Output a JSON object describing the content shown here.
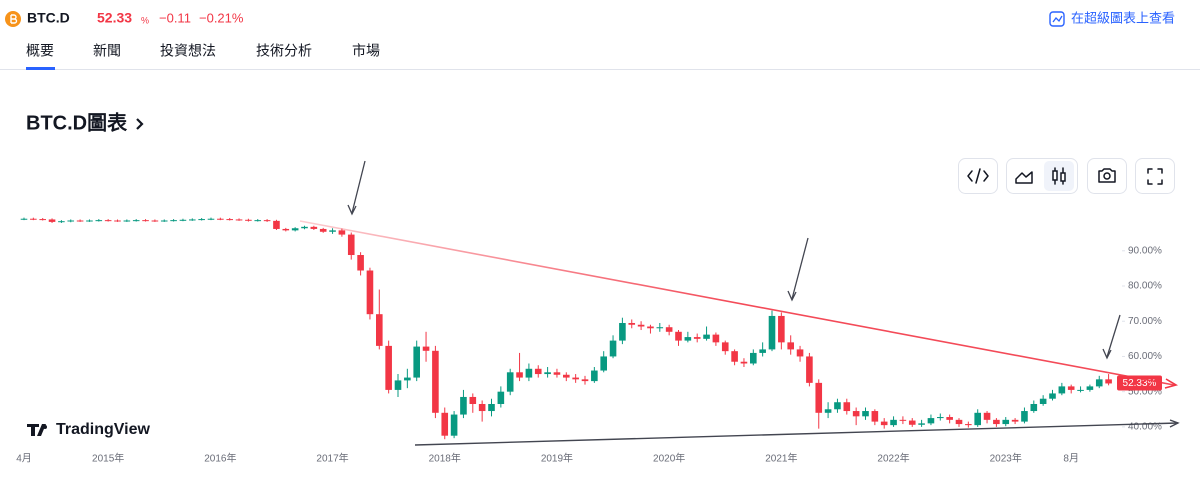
{
  "header": {
    "symbol": "BTC.D",
    "price": "52.33",
    "price_unit": "%",
    "change": "−0.11",
    "change_percent": "−0.21%",
    "link": "在超級圖表上查看"
  },
  "tabs": [
    "概要",
    "新聞",
    "投資想法",
    "技術分析",
    "市場"
  ],
  "section_title": "BTC.D圖表",
  "watermark": "TradingView",
  "chart_data": {
    "type": "candlestick",
    "categories": [
      "4月",
      null,
      null,
      null,
      null,
      null,
      null,
      null,
      null,
      "2015年",
      null,
      null,
      null,
      null,
      null,
      null,
      null,
      null,
      null,
      null,
      null,
      "2016年",
      null,
      null,
      null,
      null,
      null,
      null,
      null,
      null,
      null,
      null,
      null,
      "2017年",
      null,
      null,
      null,
      null,
      null,
      null,
      null,
      null,
      null,
      null,
      null,
      "2018年",
      null,
      null,
      null,
      null,
      null,
      null,
      null,
      null,
      null,
      null,
      null,
      "2019年",
      null,
      null,
      null,
      null,
      null,
      null,
      null,
      null,
      null,
      null,
      null,
      "2020年",
      null,
      null,
      null,
      null,
      null,
      null,
      null,
      null,
      null,
      null,
      null,
      "2021年",
      null,
      null,
      null,
      null,
      null,
      null,
      null,
      null,
      null,
      null,
      null,
      "2022年",
      null,
      null,
      null,
      null,
      null,
      null,
      null,
      null,
      null,
      null,
      null,
      "2023年",
      null,
      null,
      null,
      null,
      null,
      null,
      "8月",
      null,
      null,
      null,
      null
    ],
    "open": [
      99.0,
      99.1,
      99.0,
      98.9,
      98.2,
      98.4,
      98.6,
      98.5,
      98.6,
      98.7,
      98.6,
      98.5,
      98.6,
      98.7,
      98.6,
      98.5,
      98.6,
      98.7,
      98.8,
      98.9,
      99.0,
      99.1,
      99.0,
      98.9,
      98.8,
      98.6,
      98.7,
      98.5,
      96.2,
      95.8,
      96.4,
      96.8,
      96.2,
      95.4,
      95.8,
      94.6,
      88.8,
      84.4,
      72.0,
      63.0,
      50.5,
      53.2,
      54.0,
      62.8,
      61.6,
      44.0,
      37.5,
      43.5,
      48.5,
      46.5,
      44.5,
      46.5,
      50.0,
      55.5,
      54.0,
      56.5,
      55.0,
      55.5,
      54.8,
      54.0,
      53.5,
      53.0,
      56.0,
      60.0,
      64.5,
      69.5,
      69.0,
      68.5,
      68.0,
      68.3,
      67.0,
      64.5,
      65.5,
      65.0,
      66.2,
      64.0,
      61.5,
      58.5,
      58.0,
      61.0,
      62.0,
      71.5,
      64.0,
      62.0,
      60.0,
      52.5,
      44.0,
      45.0,
      47.0,
      44.5,
      43.0,
      44.5,
      41.5,
      40.5,
      42.0,
      41.8,
      40.6,
      41.0,
      42.5,
      42.8,
      42.0,
      40.8,
      40.5,
      44.0,
      42.0,
      40.8,
      42.0,
      41.5,
      44.5,
      46.5,
      48.0,
      49.5,
      51.5,
      50.5,
      50.5,
      51.5,
      53.5
    ],
    "high": [
      99.4,
      99.4,
      99.3,
      99.2,
      98.7,
      98.9,
      98.9,
      98.9,
      99.0,
      99.0,
      98.9,
      98.9,
      99.0,
      99.0,
      98.9,
      98.9,
      99.0,
      99.1,
      99.2,
      99.3,
      99.4,
      99.4,
      99.3,
      99.2,
      99.1,
      99.0,
      99.0,
      98.8,
      96.5,
      96.7,
      97.1,
      97.1,
      96.5,
      96.4,
      96.3,
      95.2,
      89.6,
      85.2,
      79.0,
      64.5,
      55.0,
      56.5,
      64.5,
      67.0,
      63.0,
      45.5,
      44.5,
      50.5,
      49.5,
      47.5,
      48.0,
      51.5,
      56.5,
      61.0,
      58.0,
      57.5,
      57.0,
      56.5,
      55.5,
      55.0,
      54.5,
      57.0,
      61.5,
      66.0,
      71.0,
      70.5,
      70.0,
      69.0,
      69.5,
      69.0,
      67.5,
      67.0,
      66.5,
      68.5,
      66.8,
      64.5,
      62.0,
      59.5,
      62.0,
      64.0,
      73.0,
      72.5,
      66.0,
      63.0,
      61.0,
      53.5,
      47.0,
      48.0,
      48.0,
      45.5,
      45.5,
      45.0,
      42.5,
      43.0,
      43.0,
      42.5,
      42.0,
      43.5,
      43.8,
      43.5,
      42.5,
      41.5,
      45.0,
      44.5,
      42.5,
      42.8,
      42.5,
      45.5,
      47.5,
      49.0,
      50.5,
      52.5,
      52.0,
      51.5,
      52.0,
      54.5,
      55.0
    ],
    "low": [
      98.7,
      98.7,
      98.6,
      97.9,
      97.9,
      98.1,
      98.2,
      98.2,
      98.3,
      98.3,
      98.2,
      98.2,
      98.3,
      98.3,
      98.2,
      98.2,
      98.3,
      98.4,
      98.5,
      98.6,
      98.7,
      98.7,
      98.6,
      98.5,
      98.3,
      98.3,
      98.2,
      95.9,
      95.5,
      95.5,
      96.1,
      95.9,
      95.1,
      94.8,
      94.0,
      87.5,
      83.0,
      70.5,
      62.0,
      49.5,
      48.5,
      51.0,
      53.0,
      58.5,
      42.5,
      36.5,
      36.8,
      42.5,
      44.0,
      41.5,
      43.0,
      45.5,
      49.0,
      53.0,
      53.0,
      54.0,
      54.0,
      54.0,
      53.0,
      52.5,
      52.0,
      52.5,
      55.5,
      59.5,
      63.5,
      68.0,
      67.5,
      66.5,
      67.0,
      66.0,
      63.0,
      64.0,
      64.0,
      64.5,
      63.0,
      60.5,
      57.5,
      57.0,
      57.5,
      60.0,
      61.5,
      62.0,
      60.5,
      58.5,
      51.5,
      39.5,
      42.5,
      44.0,
      43.5,
      40.5,
      42.0,
      40.5,
      39.5,
      40.0,
      40.8,
      40.0,
      40.0,
      40.5,
      41.8,
      41.0,
      40.0,
      39.8,
      40.0,
      41.0,
      40.0,
      40.2,
      40.8,
      41.0,
      44.0,
      46.0,
      47.5,
      49.0,
      49.5,
      49.8,
      50.0,
      51.0,
      51.8
    ],
    "close": [
      99.1,
      99.0,
      98.9,
      98.2,
      98.4,
      98.6,
      98.5,
      98.6,
      98.7,
      98.6,
      98.5,
      98.6,
      98.7,
      98.6,
      98.5,
      98.6,
      98.7,
      98.8,
      98.9,
      99.0,
      99.1,
      99.0,
      98.9,
      98.8,
      98.6,
      98.7,
      98.5,
      96.2,
      95.8,
      96.4,
      96.8,
      96.2,
      95.4,
      95.8,
      94.6,
      88.8,
      84.4,
      72.0,
      63.0,
      50.5,
      53.2,
      54.0,
      62.8,
      61.6,
      44.0,
      37.5,
      43.5,
      48.5,
      46.5,
      44.5,
      46.5,
      50.0,
      55.5,
      54.0,
      56.5,
      55.0,
      55.5,
      54.8,
      54.0,
      53.5,
      53.0,
      56.0,
      60.0,
      64.5,
      69.5,
      69.0,
      68.5,
      68.0,
      68.3,
      67.0,
      64.5,
      65.5,
      65.0,
      66.2,
      64.0,
      61.5,
      58.5,
      58.0,
      61.0,
      62.0,
      71.5,
      64.0,
      62.0,
      60.0,
      52.5,
      44.0,
      45.0,
      47.0,
      44.5,
      43.0,
      44.5,
      41.5,
      40.5,
      42.0,
      41.8,
      40.6,
      41.0,
      42.5,
      42.8,
      42.0,
      40.8,
      40.5,
      44.0,
      42.0,
      40.8,
      42.0,
      41.5,
      44.5,
      46.5,
      48.0,
      49.5,
      51.5,
      50.5,
      50.5,
      51.5,
      53.5,
      52.33
    ],
    "last_label": "52.33%",
    "up_color": "#089981",
    "down_color": "#f23645",
    "ylim": [
      35,
      103
    ],
    "yticks": [
      {
        "value": 40,
        "label": "40.00%"
      },
      {
        "value": 50,
        "label": "50.00%"
      },
      {
        "value": 60,
        "label": "60.00%"
      },
      {
        "value": 70,
        "label": "70.00%"
      },
      {
        "value": 80,
        "label": "80.00%"
      },
      {
        "value": 90,
        "label": "90.00%"
      }
    ]
  }
}
